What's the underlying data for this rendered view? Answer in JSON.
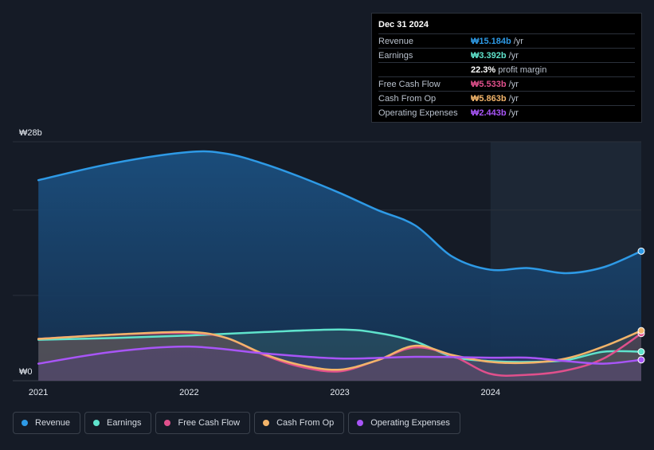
{
  "tooltip": {
    "date": "Dec 31 2024",
    "rows": [
      {
        "label": "Revenue",
        "value": "₩15.184b",
        "unit": "/yr",
        "color": "#2e9ae6"
      },
      {
        "label": "Earnings",
        "value": "₩3.392b",
        "unit": "/yr",
        "color": "#5fe3cc"
      },
      {
        "label": "",
        "value": "22.3%",
        "unit": "profit margin",
        "color": "#ffffff"
      },
      {
        "label": "Free Cash Flow",
        "value": "₩5.533b",
        "unit": "/yr",
        "color": "#e0508c"
      },
      {
        "label": "Cash From Op",
        "value": "₩5.863b",
        "unit": "/yr",
        "color": "#f2b46a"
      },
      {
        "label": "Operating Expenses",
        "value": "₩2.443b",
        "unit": "/yr",
        "color": "#a855f7"
      }
    ]
  },
  "legend": [
    {
      "label": "Revenue",
      "color": "#2e9ae6"
    },
    {
      "label": "Earnings",
      "color": "#5fe3cc"
    },
    {
      "label": "Free Cash Flow",
      "color": "#e0508c"
    },
    {
      "label": "Cash From Op",
      "color": "#f2b46a"
    },
    {
      "label": "Operating Expenses",
      "color": "#a855f7"
    }
  ],
  "chart_data": {
    "type": "area",
    "ylim": [
      0,
      28
    ],
    "y_tick_labels": [
      {
        "value": 28,
        "label": "₩28b"
      },
      {
        "value": 0,
        "label": "₩0"
      }
    ],
    "x_ticks": [
      {
        "value": 2021.0,
        "label": "2021"
      },
      {
        "value": 2022.0,
        "label": "2022"
      },
      {
        "value": 2023.0,
        "label": "2023"
      },
      {
        "value": 2024.0,
        "label": "2024"
      }
    ],
    "xlim": [
      2020.83,
      2025.0
    ],
    "highlight_from": 2024.0,
    "grid": true,
    "series": [
      {
        "name": "Revenue",
        "color": "#2e9ae6",
        "x": [
          2021.0,
          2021.5,
          2022.0,
          2022.25,
          2022.5,
          2022.75,
          2023.0,
          2023.25,
          2023.5,
          2023.75,
          2024.0,
          2024.25,
          2024.5,
          2024.75,
          2025.0
        ],
        "y": [
          23.5,
          25.5,
          26.8,
          26.6,
          25.4,
          23.8,
          22.0,
          20.0,
          18.2,
          14.5,
          13.0,
          13.2,
          12.6,
          13.3,
          15.184
        ]
      },
      {
        "name": "Earnings",
        "color": "#5fe3cc",
        "x": [
          2021.0,
          2021.5,
          2022.0,
          2022.5,
          2023.0,
          2023.25,
          2023.5,
          2023.75,
          2024.0,
          2024.25,
          2024.5,
          2024.75,
          2025.0
        ],
        "y": [
          4.8,
          5.0,
          5.3,
          5.7,
          6.0,
          5.6,
          4.6,
          2.8,
          2.3,
          2.2,
          2.4,
          3.4,
          3.392
        ]
      },
      {
        "name": "Free Cash Flow",
        "color": "#e0508c",
        "x": [
          2021.0,
          2021.5,
          2022.0,
          2022.25,
          2022.5,
          2022.75,
          2023.0,
          2023.25,
          2023.5,
          2023.75,
          2024.0,
          2024.25,
          2024.5,
          2024.75,
          2025.0
        ],
        "y": [
          4.9,
          5.4,
          5.6,
          5.0,
          3.0,
          1.6,
          1.1,
          2.4,
          3.9,
          2.9,
          0.8,
          0.7,
          1.2,
          2.6,
          5.533
        ]
      },
      {
        "name": "Cash From Op",
        "color": "#f2b46a",
        "x": [
          2021.0,
          2021.5,
          2022.0,
          2022.25,
          2022.5,
          2022.75,
          2023.0,
          2023.25,
          2023.5,
          2023.75,
          2024.0,
          2024.25,
          2024.5,
          2024.75,
          2025.0
        ],
        "y": [
          4.9,
          5.4,
          5.7,
          5.0,
          3.1,
          1.8,
          1.3,
          2.4,
          4.1,
          3.0,
          2.2,
          2.1,
          2.6,
          4.0,
          5.863
        ]
      },
      {
        "name": "Operating Expenses",
        "color": "#a855f7",
        "x": [
          2021.0,
          2021.5,
          2022.0,
          2022.5,
          2023.0,
          2023.5,
          2024.0,
          2024.25,
          2024.5,
          2024.75,
          2025.0
        ],
        "y": [
          2.0,
          3.4,
          4.0,
          3.2,
          2.6,
          2.8,
          2.7,
          2.7,
          2.3,
          2.0,
          2.443
        ]
      }
    ]
  }
}
